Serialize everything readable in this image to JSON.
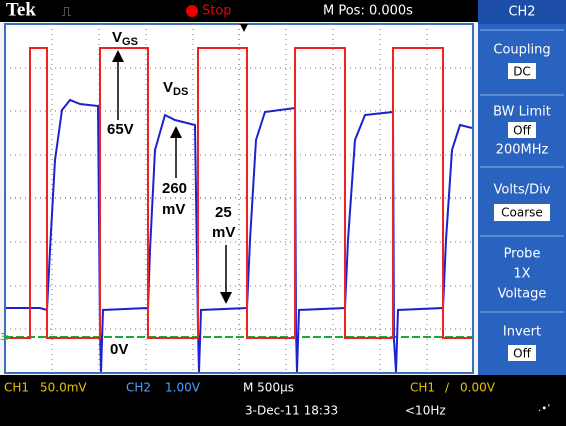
{
  "header": {
    "brand": "Tek",
    "status": "Stop",
    "position": "M Pos: 0.000s",
    "channel": "CH2"
  },
  "menu": [
    {
      "title": [
        "Coupling"
      ],
      "value": "DC"
    },
    {
      "title": [
        "BW Limit"
      ],
      "value": "Off",
      "note": "200MHz"
    },
    {
      "title": [
        "Volts/Div"
      ],
      "value": "Coarse"
    },
    {
      "title": [
        "Probe",
        "1X",
        "Voltage"
      ]
    },
    {
      "title": [
        "Invert"
      ],
      "value": "Off"
    }
  ],
  "annotations": {
    "vgs": {
      "main": "V",
      "sub": "GS"
    },
    "vds": {
      "main": "V",
      "sub": "DS"
    },
    "vgs_level": "65V",
    "vds_level": [
      "260",
      "mV"
    ],
    "vds_low": [
      "25",
      "mV"
    ],
    "ground": "0V"
  },
  "footer": {
    "ch1": "CH1",
    "ch1_scale": "50.0mV",
    "ch2": "CH2",
    "ch2_scale": "1.00V",
    "timebase": "M 500µs",
    "trigger_source": "CH1",
    "trigger_level": "0.00V",
    "datetime": "3-Dec-11 18:33",
    "frequency": "<10Hz"
  }
}
